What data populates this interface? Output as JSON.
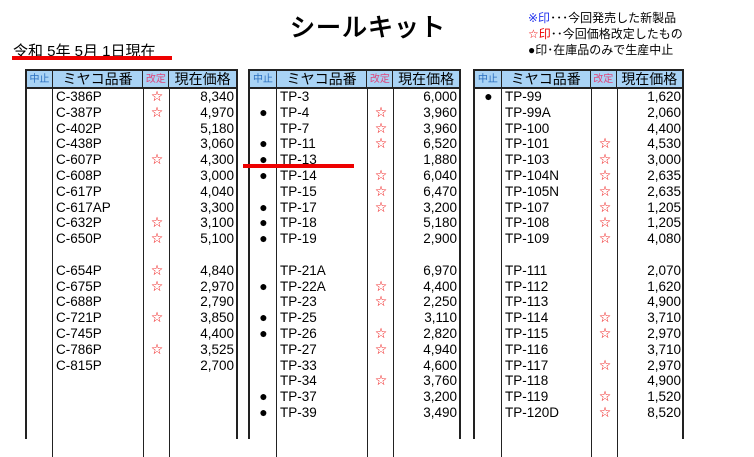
{
  "title": "シールキット",
  "date": "令和 5年 5月 1日現在",
  "legend": {
    "new_mark": "※印",
    "new_text": "･･･今回発売した新製品",
    "rev_mark": "☆印",
    "rev_text": "･･今回価格改定したもの",
    "stop_mark": "●印",
    "stop_text": "･在庫品のみで生産中止"
  },
  "headers": {
    "stop": "中止",
    "code": "ミヤコ品番",
    "rev": "改定",
    "price": "現在価格"
  },
  "colors": {
    "header_bg": "#a9d3f5",
    "accent_red": "#e00000"
  },
  "tables": [
    {
      "rows": [
        {
          "stop": "",
          "code": "C-386P",
          "rev": "☆",
          "price": "8,340"
        },
        {
          "stop": "",
          "code": "C-387P",
          "rev": "☆",
          "price": "4,970"
        },
        {
          "stop": "",
          "code": "C-402P",
          "rev": "",
          "price": "5,180"
        },
        {
          "stop": "",
          "code": "C-438P",
          "rev": "",
          "price": "3,060"
        },
        {
          "stop": "",
          "code": "C-607P",
          "rev": "☆",
          "price": "4,300"
        },
        {
          "stop": "",
          "code": "C-608P",
          "rev": "",
          "price": "3,000"
        },
        {
          "stop": "",
          "code": "C-617P",
          "rev": "",
          "price": "4,040"
        },
        {
          "stop": "",
          "code": "C-617AP",
          "rev": "",
          "price": "3,300"
        },
        {
          "stop": "",
          "code": "C-632P",
          "rev": "☆",
          "price": "3,100"
        },
        {
          "stop": "",
          "code": "C-650P",
          "rev": "☆",
          "price": "5,100"
        },
        {
          "stop": "",
          "code": "",
          "rev": "",
          "price": ""
        },
        {
          "stop": "",
          "code": "C-654P",
          "rev": "☆",
          "price": "4,840"
        },
        {
          "stop": "",
          "code": "C-675P",
          "rev": "☆",
          "price": "2,970"
        },
        {
          "stop": "",
          "code": "C-688P",
          "rev": "",
          "price": "2,790"
        },
        {
          "stop": "",
          "code": "C-721P",
          "rev": "☆",
          "price": "3,850"
        },
        {
          "stop": "",
          "code": "C-745P",
          "rev": "",
          "price": "4,400"
        },
        {
          "stop": "",
          "code": "C-786P",
          "rev": "☆",
          "price": "3,525"
        },
        {
          "stop": "",
          "code": "C-815P",
          "rev": "",
          "price": "2,700"
        }
      ]
    },
    {
      "rows": [
        {
          "stop": "",
          "code": "TP-3",
          "rev": "",
          "price": "6,000"
        },
        {
          "stop": "●",
          "code": "TP-4",
          "rev": "☆",
          "price": "3,960"
        },
        {
          "stop": "",
          "code": "TP-7",
          "rev": "☆",
          "price": "3,960"
        },
        {
          "stop": "●",
          "code": "TP-11",
          "rev": "☆",
          "price": "6,520"
        },
        {
          "stop": "●",
          "code": "TP-13",
          "rev": "",
          "price": "1,880"
        },
        {
          "stop": "●",
          "code": "TP-14",
          "rev": "☆",
          "price": "6,040"
        },
        {
          "stop": "",
          "code": "TP-15",
          "rev": "☆",
          "price": "6,470"
        },
        {
          "stop": "●",
          "code": "TP-17",
          "rev": "☆",
          "price": "3,200"
        },
        {
          "stop": "●",
          "code": "TP-18",
          "rev": "",
          "price": "5,180"
        },
        {
          "stop": "●",
          "code": "TP-19",
          "rev": "",
          "price": "2,900"
        },
        {
          "stop": "",
          "code": "",
          "rev": "",
          "price": ""
        },
        {
          "stop": "",
          "code": "TP-21A",
          "rev": "",
          "price": "6,970"
        },
        {
          "stop": "●",
          "code": "TP-22A",
          "rev": "☆",
          "price": "4,400"
        },
        {
          "stop": "",
          "code": "TP-23",
          "rev": "☆",
          "price": "2,250"
        },
        {
          "stop": "●",
          "code": "TP-25",
          "rev": "",
          "price": "3,110"
        },
        {
          "stop": "●",
          "code": "TP-26",
          "rev": "☆",
          "price": "2,820"
        },
        {
          "stop": "",
          "code": "TP-27",
          "rev": "☆",
          "price": "4,940"
        },
        {
          "stop": "",
          "code": "TP-33",
          "rev": "",
          "price": "4,600"
        },
        {
          "stop": "",
          "code": "TP-34",
          "rev": "☆",
          "price": "3,760"
        },
        {
          "stop": "●",
          "code": "TP-37",
          "rev": "",
          "price": "3,200"
        },
        {
          "stop": "●",
          "code": "TP-39",
          "rev": "",
          "price": "3,490"
        }
      ]
    },
    {
      "rows": [
        {
          "stop": "●",
          "code": "TP-99",
          "rev": "",
          "price": "1,620"
        },
        {
          "stop": "",
          "code": "TP-99A",
          "rev": "",
          "price": "2,060"
        },
        {
          "stop": "",
          "code": "TP-100",
          "rev": "",
          "price": "4,400"
        },
        {
          "stop": "",
          "code": "TP-101",
          "rev": "☆",
          "price": "4,530"
        },
        {
          "stop": "",
          "code": "TP-103",
          "rev": "☆",
          "price": "3,000"
        },
        {
          "stop": "",
          "code": "TP-104N",
          "rev": "☆",
          "price": "2,635"
        },
        {
          "stop": "",
          "code": "TP-105N",
          "rev": "☆",
          "price": "2,635"
        },
        {
          "stop": "",
          "code": "TP-107",
          "rev": "☆",
          "price": "1,205"
        },
        {
          "stop": "",
          "code": "TP-108",
          "rev": "☆",
          "price": "1,205"
        },
        {
          "stop": "",
          "code": "TP-109",
          "rev": "☆",
          "price": "4,080"
        },
        {
          "stop": "",
          "code": "",
          "rev": "",
          "price": ""
        },
        {
          "stop": "",
          "code": "TP-111",
          "rev": "",
          "price": "2,070"
        },
        {
          "stop": "",
          "code": "TP-112",
          "rev": "",
          "price": "1,620"
        },
        {
          "stop": "",
          "code": "TP-113",
          "rev": "",
          "price": "4,900"
        },
        {
          "stop": "",
          "code": "TP-114",
          "rev": "☆",
          "price": "3,710"
        },
        {
          "stop": "",
          "code": "TP-115",
          "rev": "☆",
          "price": "2,970"
        },
        {
          "stop": "",
          "code": "TP-116",
          "rev": "",
          "price": "3,710"
        },
        {
          "stop": "",
          "code": "TP-117",
          "rev": "☆",
          "price": "2,970"
        },
        {
          "stop": "",
          "code": "TP-118",
          "rev": "",
          "price": "4,900"
        },
        {
          "stop": "",
          "code": "TP-119",
          "rev": "☆",
          "price": "1,520"
        },
        {
          "stop": "",
          "code": "TP-120D",
          "rev": "☆",
          "price": "8,520"
        }
      ]
    }
  ]
}
